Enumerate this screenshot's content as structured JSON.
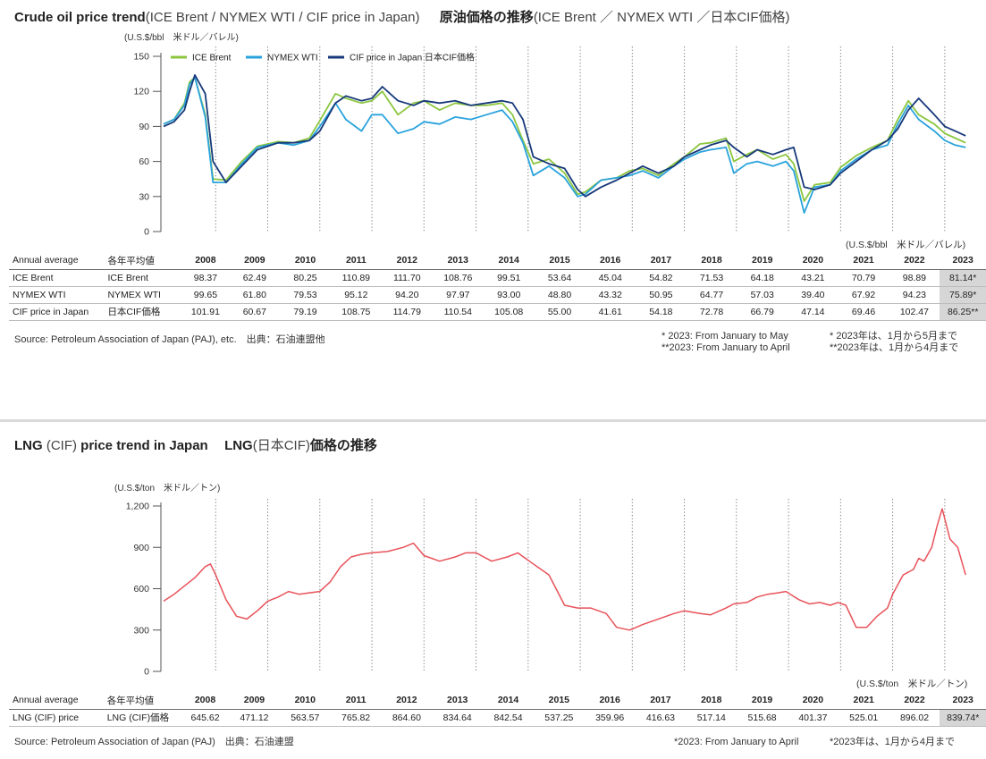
{
  "crude": {
    "title_bold": "Crude oil price trend",
    "title_light": "(ICE Brent / NYMEX WTI / CIF price in Japan)",
    "title_jp_bold": "原油価格の推移",
    "title_jp_light": "(ICE Brent ／ NYMEX WTI ／日本CIF価格)",
    "unit": "(U.S.$/bbl　米ドル／バレル)",
    "unit_right": "(U.S.$/bbl　米ドル／バレル)",
    "header_en": "Annual average",
    "header_jp": "各年平均値",
    "years": [
      "2008",
      "2009",
      "2010",
      "2011",
      "2012",
      "2013",
      "2014",
      "2015",
      "2016",
      "2017",
      "2018",
      "2019",
      "2020",
      "2021",
      "2022",
      "2023"
    ],
    "rows": [
      {
        "en": "ICE Brent",
        "jp": "ICE Brent",
        "values": [
          "98.37",
          "62.49",
          "80.25",
          "110.89",
          "111.70",
          "108.76",
          "99.51",
          "53.64",
          "45.04",
          "54.82",
          "71.53",
          "64.18",
          "43.21",
          "70.79",
          "98.89",
          "81.14*"
        ]
      },
      {
        "en": "NYMEX WTI",
        "jp": "NYMEX WTI",
        "values": [
          "99.65",
          "61.80",
          "79.53",
          "95.12",
          "94.20",
          "97.97",
          "93.00",
          "48.80",
          "43.32",
          "50.95",
          "64.77",
          "57.03",
          "39.40",
          "67.92",
          "94.23",
          "75.89*"
        ]
      },
      {
        "en": "CIF price in Japan",
        "jp": "日本CIF価格",
        "values": [
          "101.91",
          "60.67",
          "79.19",
          "108.75",
          "114.79",
          "110.54",
          "105.08",
          "55.00",
          "41.61",
          "54.18",
          "72.78",
          "66.79",
          "47.14",
          "69.46",
          "102.47",
          "86.25**"
        ]
      }
    ],
    "source": "Source: Petroleum Association of Japan (PAJ), etc.　出典：石油連盟他",
    "note1_en": "*  2023: From January to May",
    "note1_jp": "*  2023年は、1月から5月まで",
    "note2_en": "**2023: From January to April",
    "note2_jp": "**2023年は、1月から4月まで"
  },
  "lng": {
    "title_bold1": "LNG",
    "title_light1": "(CIF)",
    "title_bold2": "price trend in Japan",
    "title_jp_bold1": "LNG",
    "title_jp_light": "(日本CIF)",
    "title_jp_bold2": "価格の推移",
    "unit": "(U.S.$/ton　米ドル／トン)",
    "unit_right": "(U.S.$/ton　米ドル／トン)",
    "header_en": "Annual average",
    "header_jp": "各年平均値",
    "years": [
      "2008",
      "2009",
      "2010",
      "2011",
      "2012",
      "2013",
      "2014",
      "2015",
      "2016",
      "2017",
      "2018",
      "2019",
      "2020",
      "2021",
      "2022",
      "2023"
    ],
    "rows": [
      {
        "en": "LNG (CIF) price",
        "jp": "LNG (CIF)価格",
        "values": [
          "645.62",
          "471.12",
          "563.57",
          "765.82",
          "864.60",
          "834.64",
          "842.54",
          "537.25",
          "359.96",
          "416.63",
          "517.14",
          "515.68",
          "401.37",
          "525.01",
          "896.02",
          "839.74*"
        ]
      }
    ],
    "source": "Source: Petroleum Association of Japan (PAJ)　出典：石油連盟",
    "note_en": "*2023: From January to April",
    "note_jp": "*2023年は、1月から4月まで"
  },
  "chart_data": [
    {
      "type": "line",
      "ylabel": "(U.S.$/bbl　米ドル／バレル)",
      "ylim": [
        0,
        150
      ],
      "yticks": [
        0,
        30,
        60,
        90,
        120,
        150
      ],
      "x_unit": "year (annual gridlines at year boundaries 2008–2023, reading: approximate monthly points)",
      "x_range": [
        2008.0,
        2023.5
      ],
      "grid": "vertical dotted year lines",
      "legend": "top-left",
      "series": [
        {
          "name": "ICE Brent",
          "color": "#8cc63f",
          "x": [
            2008.0,
            2008.2,
            2008.4,
            2008.5,
            2008.6,
            2008.8,
            2008.95,
            2009.2,
            2009.5,
            2009.8,
            2010.2,
            2010.5,
            2010.8,
            2011.0,
            2011.3,
            2011.5,
            2011.8,
            2012.0,
            2012.2,
            2012.5,
            2012.8,
            2013.0,
            2013.3,
            2013.6,
            2013.9,
            2014.2,
            2014.5,
            2014.7,
            2014.9,
            2015.1,
            2015.4,
            2015.7,
            2015.95,
            2016.1,
            2016.4,
            2016.7,
            2016.95,
            2017.2,
            2017.5,
            2017.8,
            2018.0,
            2018.3,
            2018.5,
            2018.8,
            2018.95,
            2019.2,
            2019.4,
            2019.7,
            2019.95,
            2020.1,
            2020.3,
            2020.5,
            2020.8,
            2021.0,
            2021.3,
            2021.6,
            2021.9,
            2022.1,
            2022.3,
            2022.5,
            2022.8,
            2023.0,
            2023.2,
            2023.4
          ],
          "y": [
            92,
            96,
            110,
            128,
            132,
            100,
            45,
            44,
            60,
            73,
            77,
            76,
            80,
            95,
            118,
            114,
            110,
            112,
            120,
            100,
            110,
            112,
            104,
            110,
            108,
            108,
            110,
            100,
            78,
            58,
            62,
            50,
            32,
            34,
            44,
            46,
            52,
            54,
            48,
            58,
            64,
            75,
            76,
            80,
            60,
            66,
            70,
            62,
            66,
            58,
            26,
            40,
            42,
            55,
            65,
            72,
            78,
            96,
            112,
            100,
            92,
            84,
            80,
            76
          ]
        },
        {
          "name": "NYMEX WTI",
          "color": "#29a3dc",
          "x": [
            2008.0,
            2008.2,
            2008.4,
            2008.5,
            2008.6,
            2008.8,
            2008.95,
            2009.2,
            2009.5,
            2009.8,
            2010.2,
            2010.5,
            2010.8,
            2011.0,
            2011.3,
            2011.5,
            2011.8,
            2012.0,
            2012.2,
            2012.5,
            2012.8,
            2013.0,
            2013.3,
            2013.6,
            2013.9,
            2014.2,
            2014.5,
            2014.7,
            2014.9,
            2015.1,
            2015.4,
            2015.7,
            2015.95,
            2016.1,
            2016.4,
            2016.7,
            2016.95,
            2017.2,
            2017.5,
            2017.8,
            2018.0,
            2018.3,
            2018.5,
            2018.8,
            2018.95,
            2019.2,
            2019.4,
            2019.7,
            2019.95,
            2020.1,
            2020.3,
            2020.5,
            2020.8,
            2021.0,
            2021.3,
            2021.6,
            2021.9,
            2022.1,
            2022.3,
            2022.5,
            2022.8,
            2023.0,
            2023.2,
            2023.4
          ],
          "y": [
            92,
            96,
            108,
            126,
            132,
            98,
            42,
            42,
            58,
            72,
            76,
            74,
            78,
            90,
            110,
            96,
            86,
            100,
            100,
            84,
            88,
            94,
            92,
            98,
            96,
            100,
            104,
            94,
            76,
            48,
            56,
            46,
            30,
            32,
            44,
            46,
            48,
            52,
            46,
            56,
            62,
            68,
            70,
            72,
            50,
            58,
            60,
            56,
            60,
            52,
            16,
            38,
            40,
            52,
            62,
            70,
            74,
            92,
            108,
            96,
            86,
            78,
            74,
            72
          ]
        },
        {
          "name": "CIF price in Japan 日本CIF価格",
          "color": "#17397a",
          "x": [
            2008.0,
            2008.2,
            2008.4,
            2008.5,
            2008.6,
            2008.8,
            2008.95,
            2009.2,
            2009.5,
            2009.8,
            2010.2,
            2010.5,
            2010.8,
            2011.0,
            2011.3,
            2011.5,
            2011.8,
            2012.0,
            2012.2,
            2012.5,
            2012.8,
            2013.0,
            2013.3,
            2013.6,
            2013.9,
            2014.2,
            2014.5,
            2014.7,
            2014.9,
            2015.1,
            2015.4,
            2015.7,
            2015.95,
            2016.1,
            2016.4,
            2016.7,
            2016.95,
            2017.2,
            2017.5,
            2017.8,
            2018.0,
            2018.3,
            2018.5,
            2018.8,
            2018.95,
            2019.2,
            2019.4,
            2019.7,
            2019.95,
            2020.1,
            2020.3,
            2020.5,
            2020.8,
            2021.0,
            2021.3,
            2021.6,
            2021.9,
            2022.1,
            2022.3,
            2022.5,
            2022.8,
            2023.0,
            2023.2,
            2023.4
          ],
          "y": [
            90,
            94,
            104,
            120,
            134,
            118,
            60,
            42,
            56,
            70,
            76,
            76,
            78,
            86,
            110,
            116,
            112,
            114,
            124,
            112,
            108,
            112,
            110,
            112,
            108,
            110,
            112,
            110,
            96,
            64,
            58,
            54,
            36,
            30,
            38,
            44,
            50,
            56,
            50,
            56,
            64,
            70,
            74,
            78,
            72,
            64,
            70,
            66,
            70,
            72,
            38,
            36,
            40,
            50,
            60,
            70,
            78,
            88,
            104,
            114,
            100,
            90,
            86,
            82
          ]
        }
      ]
    },
    {
      "type": "line",
      "ylabel": "(U.S.$/ton　米ドル／トン)",
      "ylim": [
        0,
        1200
      ],
      "yticks": [
        0,
        300,
        600,
        900,
        1200
      ],
      "x_unit": "year (annual gridlines at year boundaries 2008–2023, reading: approximate monthly points)",
      "x_range": [
        2008.0,
        2023.5
      ],
      "grid": "vertical dotted year lines",
      "series": [
        {
          "name": "LNG (CIF) price",
          "color": "#e8525a",
          "x": [
            2008.0,
            2008.2,
            2008.4,
            2008.6,
            2008.8,
            2008.9,
            2009.0,
            2009.2,
            2009.4,
            2009.6,
            2009.8,
            2010.0,
            2010.2,
            2010.4,
            2010.6,
            2010.8,
            2011.0,
            2011.2,
            2011.4,
            2011.6,
            2011.8,
            2012.0,
            2012.3,
            2012.6,
            2012.8,
            2013.0,
            2013.3,
            2013.6,
            2013.8,
            2014.0,
            2014.3,
            2014.6,
            2014.8,
            2014.95,
            2015.1,
            2015.4,
            2015.7,
            2015.95,
            2016.2,
            2016.5,
            2016.7,
            2016.95,
            2017.2,
            2017.5,
            2017.8,
            2018.0,
            2018.3,
            2018.5,
            2018.8,
            2018.95,
            2019.2,
            2019.4,
            2019.6,
            2019.8,
            2019.95,
            2020.2,
            2020.4,
            2020.6,
            2020.8,
            2020.95,
            2021.1,
            2021.3,
            2021.5,
            2021.7,
            2021.9,
            2022.0,
            2022.2,
            2022.4,
            2022.5,
            2022.6,
            2022.75,
            2022.85,
            2022.95,
            2023.1,
            2023.25,
            2023.4
          ],
          "y": [
            510,
            560,
            620,
            680,
            760,
            780,
            700,
            520,
            400,
            380,
            440,
            510,
            540,
            580,
            560,
            570,
            580,
            650,
            760,
            830,
            850,
            860,
            870,
            900,
            930,
            840,
            800,
            830,
            860,
            860,
            800,
            830,
            860,
            820,
            780,
            700,
            480,
            460,
            460,
            420,
            320,
            300,
            340,
            380,
            420,
            440,
            420,
            410,
            460,
            490,
            500,
            540,
            560,
            570,
            580,
            520,
            490,
            500,
            480,
            500,
            480,
            320,
            320,
            400,
            460,
            560,
            700,
            740,
            820,
            800,
            900,
            1050,
            1180,
            960,
            900,
            700
          ]
        }
      ]
    }
  ]
}
